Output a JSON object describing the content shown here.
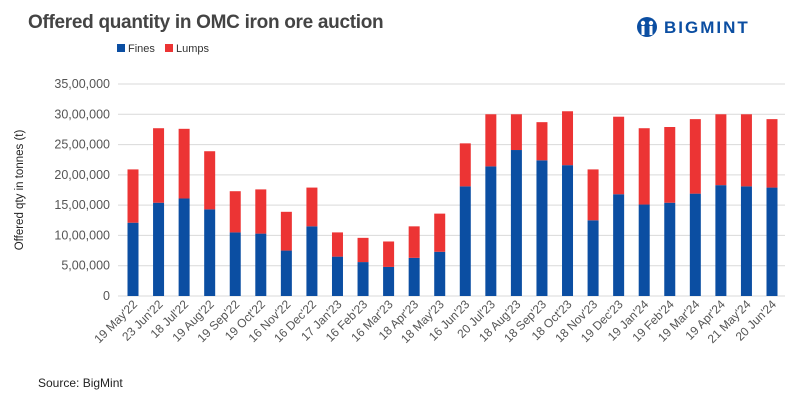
{
  "title": "Offered quantity in OMC iron ore auction",
  "logo": "BIGMINT",
  "source": "Source: BigMint",
  "colors": {
    "Fines": "#0b4ea2",
    "Lumps": "#ec3434",
    "grid": "#d9d9d9"
  },
  "chart_data": {
    "type": "bar",
    "stacked": true,
    "title": "Offered quantity in OMC iron ore auction",
    "xlabel": "",
    "ylabel": "Offered qty in tonnes (t)",
    "ylim": [
      0,
      3500000
    ],
    "yticks": [
      0,
      500000,
      1000000,
      1500000,
      2000000,
      2500000,
      3000000,
      3500000
    ],
    "ytick_labels": [
      "0",
      "5,00,000",
      "10,00,000",
      "15,00,000",
      "20,00,000",
      "25,00,000",
      "30,00,000",
      "35,00,000"
    ],
    "grid": true,
    "legend": "top-left",
    "categories": [
      "19 May'22",
      "23 Jun'22",
      "18 Jul'22",
      "19 Aug'22",
      "19 Sep'22",
      "19 Oct'22",
      "16 Nov'22",
      "16 Dec'22",
      "17 Jan'23",
      "16 Feb'23",
      "16 Mar'23",
      "18 Apr'23",
      "18 May'23",
      "16 Jun'23",
      "20 Jul'23",
      "18 Aug'23",
      "18 Sep'23",
      "18 Oct'23",
      "18 Nov'23",
      "19 Dec'23",
      "19 Jan'24",
      "19 Feb'24",
      "19 Mar'24",
      "19 Apr'24",
      "21 May'24",
      "20 Jun'24"
    ],
    "series": [
      {
        "name": "Fines",
        "values": [
          1210000,
          1540000,
          1610000,
          1430000,
          1050000,
          1030000,
          750000,
          1150000,
          650000,
          560000,
          480000,
          630000,
          730000,
          1810000,
          2140000,
          2410000,
          2240000,
          2160000,
          1250000,
          1680000,
          1510000,
          1540000,
          1690000,
          1830000,
          1810000,
          1790000
        ]
      },
      {
        "name": "Lumps",
        "values": [
          880000,
          1230000,
          1150000,
          960000,
          680000,
          730000,
          640000,
          640000,
          400000,
          400000,
          420000,
          520000,
          630000,
          710000,
          860000,
          590000,
          630000,
          890000,
          840000,
          1280000,
          1260000,
          1250000,
          1230000,
          1170000,
          1190000,
          1130000
        ]
      }
    ]
  }
}
